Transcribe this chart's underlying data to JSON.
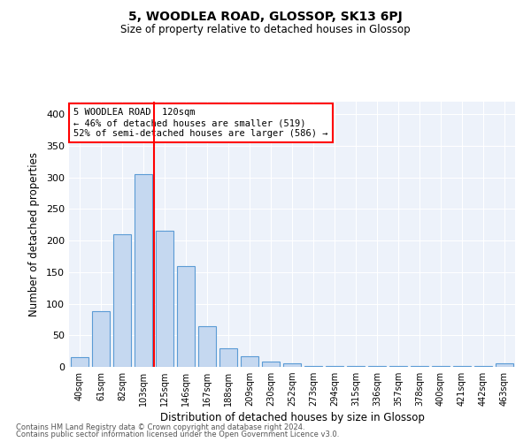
{
  "title": "5, WOODLEA ROAD, GLOSSOP, SK13 6PJ",
  "subtitle": "Size of property relative to detached houses in Glossop",
  "xlabel": "Distribution of detached houses by size in Glossop",
  "ylabel": "Number of detached properties",
  "categories": [
    "40sqm",
    "61sqm",
    "82sqm",
    "103sqm",
    "125sqm",
    "146sqm",
    "167sqm",
    "188sqm",
    "209sqm",
    "230sqm",
    "252sqm",
    "273sqm",
    "294sqm",
    "315sqm",
    "336sqm",
    "357sqm",
    "378sqm",
    "400sqm",
    "421sqm",
    "442sqm",
    "463sqm"
  ],
  "values": [
    15,
    88,
    210,
    305,
    215,
    160,
    65,
    30,
    17,
    9,
    5,
    2,
    1,
    1,
    1,
    1,
    1,
    1,
    1,
    1,
    5
  ],
  "bar_color": "#c5d8f0",
  "bar_edge_color": "#5b9bd5",
  "vline_x_idx": 4,
  "vline_color": "red",
  "annotation_text": "5 WOODLEA ROAD: 120sqm\n← 46% of detached houses are smaller (519)\n52% of semi-detached houses are larger (586) →",
  "annotation_box_color": "white",
  "annotation_box_edge": "red",
  "ylim": [
    0,
    420
  ],
  "yticks": [
    0,
    50,
    100,
    150,
    200,
    250,
    300,
    350,
    400
  ],
  "bg_color": "#edf2fa",
  "footer_line1": "Contains HM Land Registry data © Crown copyright and database right 2024.",
  "footer_line2": "Contains public sector information licensed under the Open Government Licence v3.0."
}
